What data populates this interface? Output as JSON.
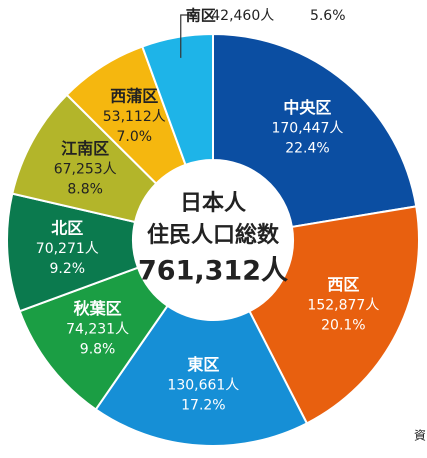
{
  "chart_data": {
    "type": "donut",
    "categories": [
      "中央区",
      "西区",
      "東区",
      "秋葉区",
      "北区",
      "江南区",
      "西蒲区",
      "南区"
    ],
    "values": [
      170447,
      152877,
      130661,
      74231,
      70271,
      67253,
      53112,
      42460
    ],
    "value_labels": [
      "170,447人",
      "152,877人",
      "130,661人",
      "74,231人",
      "70,271人",
      "67,253人",
      "53,112人",
      "42,460人"
    ],
    "percents": [
      22.4,
      20.1,
      17.2,
      9.8,
      9.2,
      8.8,
      7.0,
      5.6
    ],
    "percent_labels": [
      "22.4%",
      "20.1%",
      "17.2%",
      "9.8%",
      "9.2%",
      "8.8%",
      "7.0%",
      "5.6%"
    ],
    "colors": [
      "#0b4ea2",
      "#e8600f",
      "#168fd6",
      "#1b9e44",
      "#0b7a4e",
      "#b3b52a",
      "#f5b70f",
      "#1eb4e8"
    ],
    "center_lines": [
      "日本人",
      "住民人口総数"
    ],
    "total": 761312,
    "total_label": "761,312人",
    "source": "資"
  }
}
